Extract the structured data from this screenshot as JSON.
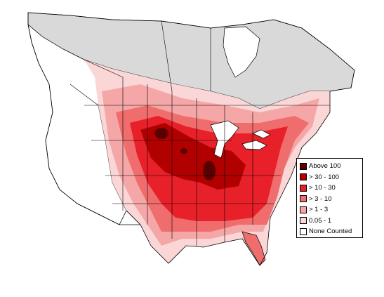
{
  "legend": {
    "items": [
      {
        "label": "Above 100",
        "color": "#5a0000"
      },
      {
        "label": "> 30 - 100",
        "color": "#b00000"
      },
      {
        "label": "> 10 - 30",
        "color": "#e8202a"
      },
      {
        "label": "> 3 - 10",
        "color": "#ef6d6d"
      },
      {
        "label": "> 1 - 3",
        "color": "#f5a6a6"
      },
      {
        "label": "0.05 - 1",
        "color": "#fbd6d6"
      },
      {
        "label": "None Counted",
        "color": "#ffffff"
      }
    ]
  },
  "colors": {
    "no_data_region": "#d9d9d9",
    "unsurveyed": "#ffffff",
    "borders": "#000000"
  }
}
